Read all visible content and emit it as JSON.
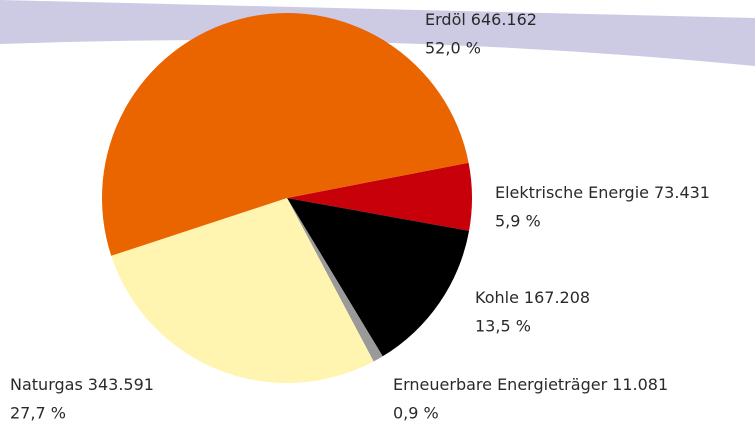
{
  "chart_data": {
    "type": "pie",
    "categories": [
      "Elektrische Energie",
      "Kohle",
      "Erneuerbare Energieträger",
      "Naturgas",
      "Erdöl"
    ],
    "amounts": [
      73431,
      167208,
      11081,
      343591,
      646162
    ],
    "amount_labels": [
      "73.431",
      "167.208",
      "11.081",
      "343.591",
      "646.162"
    ],
    "values": [
      5.9,
      13.5,
      0.9,
      27.7,
      52.0
    ],
    "value_labels": [
      "5,9 %",
      "13,5 %",
      "0,9 %",
      "27,7 %",
      "52,0 %"
    ],
    "colors": [
      "#c8000a",
      "#000000",
      "#9a9a9a",
      "#fff5b0",
      "#ea6400"
    ]
  }
}
